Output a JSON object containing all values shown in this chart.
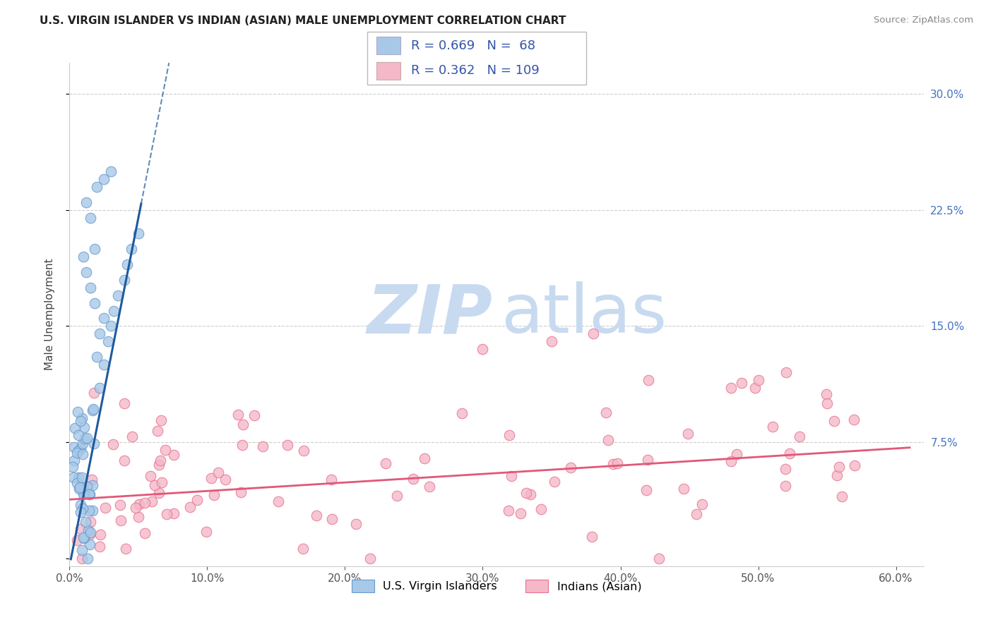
{
  "title": "U.S. VIRGIN ISLANDER VS INDIAN (ASIAN) MALE UNEMPLOYMENT CORRELATION CHART",
  "source": "Source: ZipAtlas.com",
  "ylabel": "Male Unemployment",
  "xlim": [
    0.0,
    0.62
  ],
  "ylim": [
    -0.005,
    0.32
  ],
  "xticks": [
    0.0,
    0.1,
    0.2,
    0.3,
    0.4,
    0.5,
    0.6
  ],
  "yticks": [
    0.0,
    0.075,
    0.15,
    0.225,
    0.3
  ],
  "ytick_labels": [
    "",
    "7.5%",
    "15.0%",
    "22.5%",
    "30.0%"
  ],
  "xtick_labels": [
    "0.0%",
    "10.0%",
    "20.0%",
    "30.0%",
    "40.0%",
    "50.0%",
    "60.0%"
  ],
  "grid_color": "#cccccc",
  "background_color": "#ffffff",
  "blue_R": 0.669,
  "blue_N": 68,
  "pink_R": 0.362,
  "pink_N": 109,
  "blue_color": "#a8c8e8",
  "blue_edge_color": "#6699cc",
  "pink_color": "#f4b8c8",
  "pink_edge_color": "#e87090",
  "blue_line_color": "#1f5a9c",
  "pink_line_color": "#e05878",
  "legend_label_blue": "U.S. Virgin Islanders",
  "legend_label_pink": "Indians (Asian)",
  "blue_slope": 4.5,
  "blue_intercept": -0.005,
  "pink_slope": 0.055,
  "pink_intercept": 0.038
}
